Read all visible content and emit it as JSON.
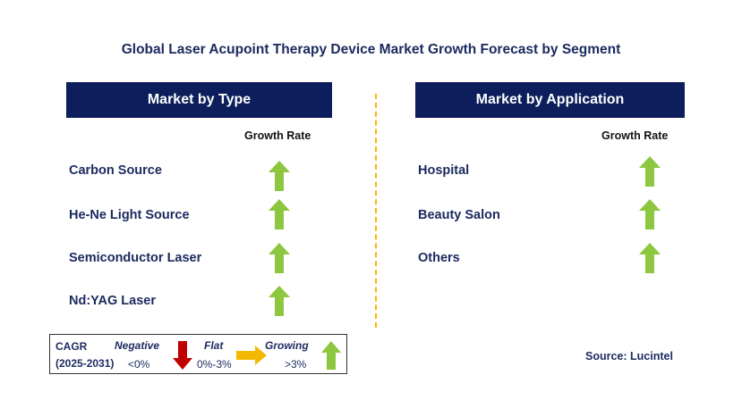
{
  "title": "Global Laser Acupoint Therapy Device Market Growth Forecast by Segment",
  "colors": {
    "header_bg": "#0c1f5c",
    "arrow_up": "#8dc63f",
    "arrow_down": "#c00000",
    "arrow_flat": "#f5b800",
    "divider": "#f5b800"
  },
  "type_panel": {
    "header": "Market by Type",
    "growth_rate_label": "Growth Rate",
    "rows": [
      {
        "label": "Carbon Source",
        "trend": "growing"
      },
      {
        "label": "He-Ne Light Source",
        "trend": "growing"
      },
      {
        "label": "Semiconductor Laser",
        "trend": "growing"
      },
      {
        "label": "Nd:YAG Laser",
        "trend": "growing"
      }
    ]
  },
  "application_panel": {
    "header": "Market by Application",
    "growth_rate_label": "Growth Rate",
    "rows": [
      {
        "label": "Hospital",
        "trend": "growing"
      },
      {
        "label": "Beauty Salon",
        "trend": "growing"
      },
      {
        "label": "Others",
        "trend": "growing"
      }
    ]
  },
  "legend": {
    "cagr_label": "CAGR",
    "period": "(2025-2031)",
    "negative": {
      "label": "Negative",
      "range": "<0%",
      "icon": "arrow-down-icon"
    },
    "flat": {
      "label": "Flat",
      "range": "0%-3%",
      "icon": "arrow-right-icon"
    },
    "growing": {
      "label": "Growing",
      "range": ">3%",
      "icon": "arrow-up-icon"
    }
  },
  "source": "Source: Lucintel"
}
